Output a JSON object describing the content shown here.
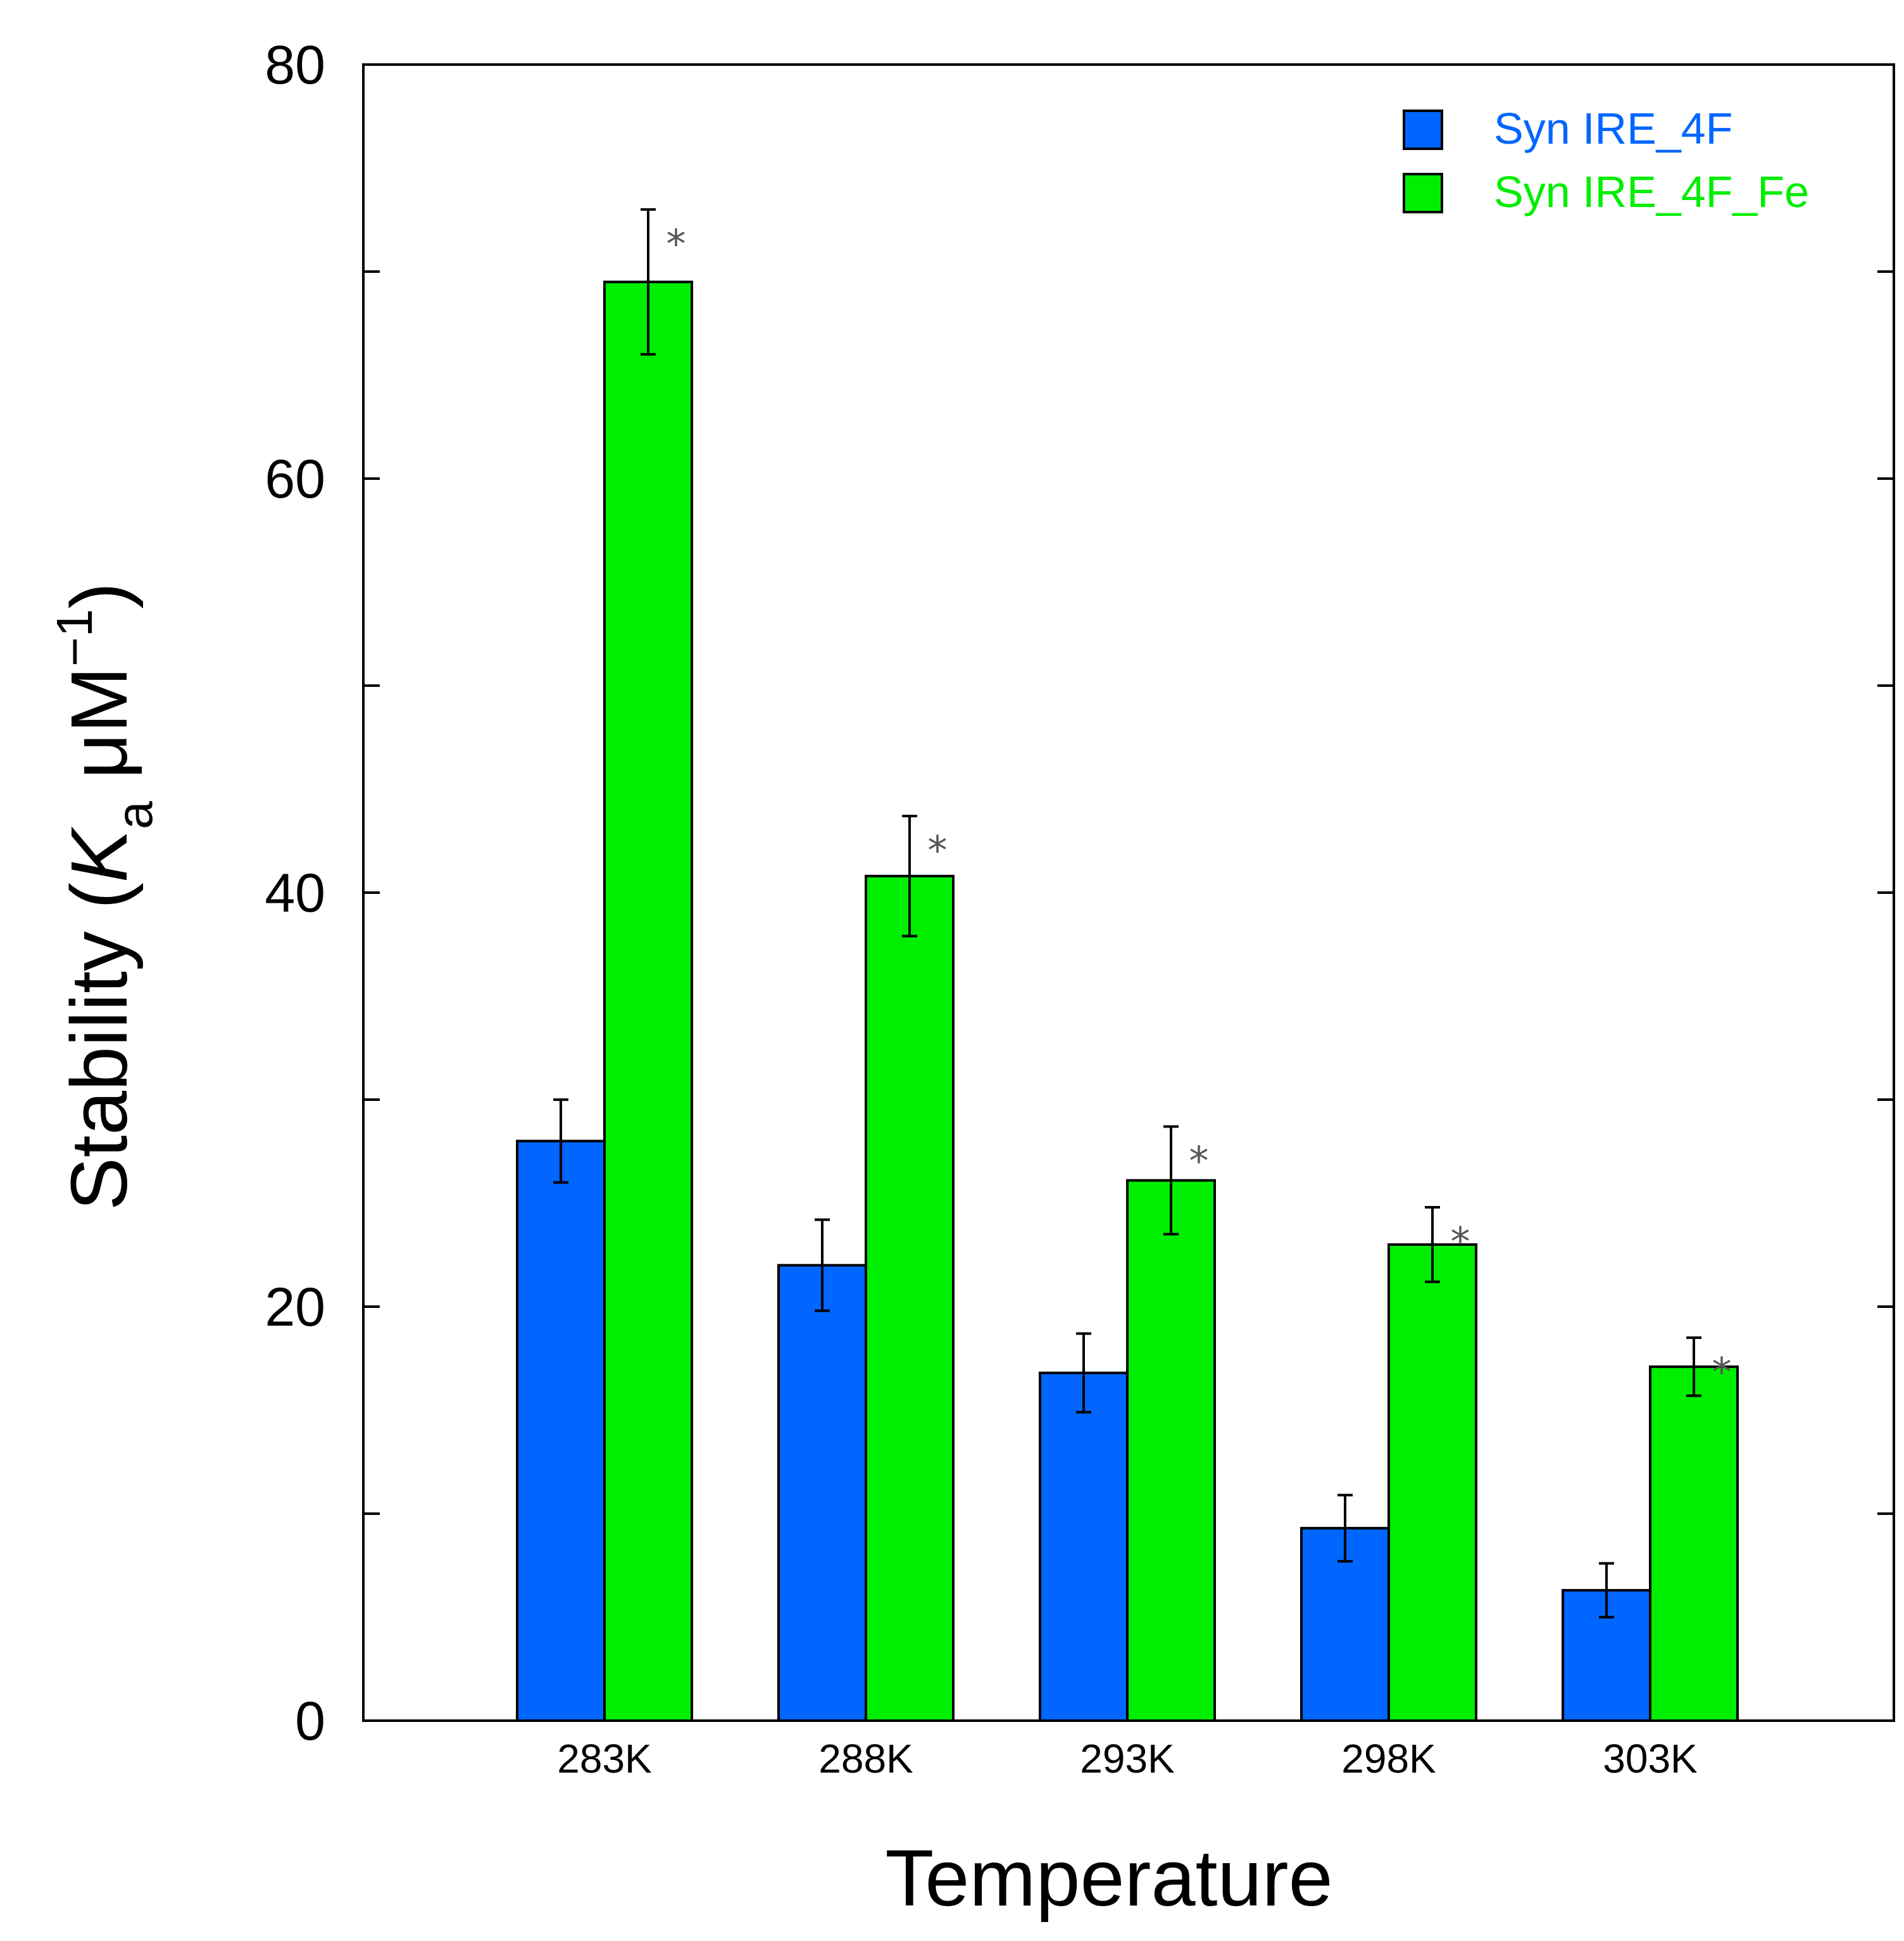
{
  "chart_data": {
    "type": "bar",
    "categories": [
      "283K",
      "288K",
      "293K",
      "298K",
      "303K"
    ],
    "series": [
      {
        "name": "Syn IRE_4F",
        "color": "#0066ff",
        "values": [
          28.0,
          22.0,
          16.8,
          9.3,
          6.3
        ],
        "errors": [
          2.0,
          2.2,
          1.9,
          1.6,
          1.3
        ]
      },
      {
        "name": "Syn IRE_4F_Fe",
        "color": "#00ee00",
        "values": [
          69.5,
          40.8,
          26.1,
          23.0,
          17.1
        ],
        "errors": [
          3.5,
          2.9,
          2.6,
          1.8,
          1.4
        ],
        "annotations": [
          "*",
          "*",
          "*",
          "*",
          "*"
        ]
      }
    ],
    "xlabel": "Temperature",
    "ylabel": {
      "prefix": "Stability (",
      "italic": "K",
      "subscript": "a",
      "unit": " μM",
      "superscript": "−1",
      "suffix": ")"
    },
    "ylim": [
      0,
      80
    ],
    "yticks_labeled": [
      "0",
      "20",
      "40",
      "60",
      "80"
    ],
    "ytick_values": [
      0,
      20,
      40,
      60,
      80
    ],
    "minor_tick_values": [
      10,
      30,
      50,
      70
    ],
    "grid": false,
    "legend_position": "top-right"
  }
}
